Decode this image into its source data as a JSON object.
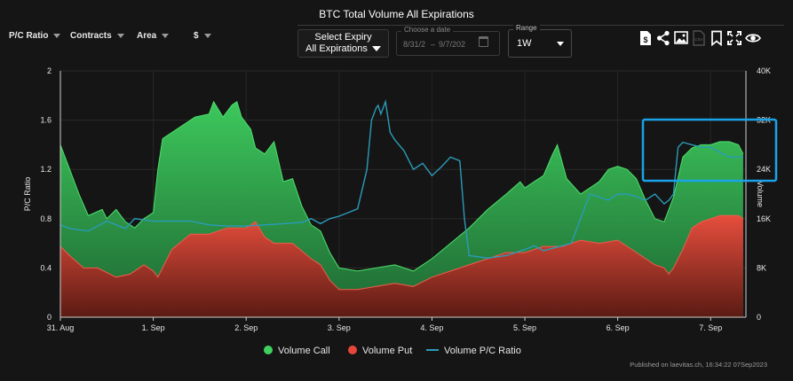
{
  "header": {
    "title": "BTC Total Volume All Expirations"
  },
  "toolbar": {
    "dropdowns": [
      "P/C Ratio",
      "Contracts",
      "Area",
      "$"
    ],
    "expiry_label": "Select Expiry",
    "expiry_value": "All Expirations",
    "date_legend": "Choose a date",
    "date_from": "8/31/2",
    "date_sep": "–",
    "date_to": "9/7/202",
    "range_legend": "Range",
    "range_value": "1W"
  },
  "icons": [
    "dollar-file-icon",
    "share-icon",
    "image-icon",
    "csv-icon",
    "bookmark-icon",
    "fullscreen-icon",
    "eye-icon"
  ],
  "published": "Published on laevitas.ch, 16:34:22 07Sep2023",
  "colors": {
    "call": "#3fd160",
    "put": "#e8463a",
    "ratio": "#2b9bb8",
    "highlight": "#1aa3e8"
  },
  "chart_data": {
    "type": "area",
    "title": "BTC Total Volume All Expirations",
    "x_ticks": [
      "31. Aug",
      "1. Sep",
      "2. Sep",
      "3. Sep",
      "4. Sep",
      "5. Sep",
      "6. Sep",
      "7. Sep"
    ],
    "x_range": [
      0,
      7.38
    ],
    "y_left": {
      "label": "P/C Ratio",
      "ticks": [
        "0",
        "0.4",
        "0.8",
        "1.2",
        "1.6",
        "2"
      ],
      "range": [
        0,
        2
      ]
    },
    "y_right": {
      "label": "Volume",
      "ticks": [
        "0",
        "8K",
        "16K",
        "24K",
        "32K",
        "40K"
      ],
      "range": [
        0,
        40000
      ]
    },
    "grid": true,
    "legend_position": "bottom",
    "series": [
      {
        "name": "Volume Call",
        "axis": "right",
        "x": [
          0,
          0.1,
          0.2,
          0.3,
          0.45,
          0.5,
          0.6,
          0.7,
          0.8,
          0.9,
          1.0,
          1.05,
          1.1,
          1.2,
          1.3,
          1.45,
          1.6,
          1.65,
          1.75,
          1.85,
          1.9,
          1.95,
          2.05,
          2.1,
          2.2,
          2.3,
          2.4,
          2.5,
          2.6,
          2.7,
          2.8,
          2.9,
          3.0,
          3.2,
          3.4,
          3.6,
          3.8,
          4.0,
          4.2,
          4.4,
          4.6,
          4.8,
          4.95,
          5.0,
          5.1,
          5.2,
          5.3,
          5.35,
          5.45,
          5.6,
          5.8,
          5.9,
          6.0,
          6.1,
          6.2,
          6.3,
          6.35,
          6.4,
          6.5,
          6.6,
          6.7,
          6.8,
          6.9,
          7.0,
          7.1,
          7.2,
          7.3,
          7.35
        ],
        "values": [
          28000,
          24000,
          20000,
          16500,
          17500,
          16000,
          17500,
          15500,
          14500,
          16000,
          17000,
          24000,
          29000,
          30000,
          31000,
          32500,
          33000,
          35000,
          32500,
          34500,
          35000,
          32500,
          30500,
          27500,
          26500,
          28500,
          22000,
          22500,
          18000,
          15000,
          14000,
          10500,
          8000,
          7500,
          8000,
          8500,
          7500,
          9500,
          12000,
          14500,
          17500,
          20000,
          22000,
          21000,
          22000,
          23000,
          26500,
          28000,
          22500,
          20000,
          22000,
          24000,
          24500,
          24000,
          22500,
          19000,
          17500,
          16000,
          15500,
          19500,
          26000,
          27500,
          28000,
          28000,
          28500,
          28500,
          28000,
          26500
        ]
      },
      {
        "name": "Volume Put",
        "axis": "right",
        "x": [
          0,
          0.1,
          0.25,
          0.4,
          0.6,
          0.75,
          0.9,
          1.0,
          1.05,
          1.2,
          1.4,
          1.6,
          1.8,
          2.0,
          2.1,
          2.2,
          2.3,
          2.5,
          2.7,
          2.8,
          2.9,
          3.0,
          3.2,
          3.4,
          3.6,
          3.8,
          4.0,
          4.2,
          4.4,
          4.6,
          4.8,
          5.0,
          5.2,
          5.4,
          5.6,
          5.8,
          6.0,
          6.2,
          6.4,
          6.5,
          6.55,
          6.6,
          6.7,
          6.8,
          6.9,
          7.0,
          7.1,
          7.2,
          7.3,
          7.35
        ],
        "values": [
          11500,
          10000,
          8000,
          8000,
          6500,
          7000,
          8500,
          7500,
          6500,
          11000,
          13500,
          13500,
          14500,
          14500,
          15500,
          13000,
          12000,
          12000,
          9500,
          8500,
          6000,
          4500,
          4500,
          5000,
          5500,
          5000,
          6500,
          7500,
          8500,
          9500,
          10500,
          10500,
          11500,
          11500,
          12500,
          12000,
          12500,
          10500,
          8500,
          8000,
          7000,
          8000,
          11000,
          14500,
          15500,
          16000,
          16500,
          16500,
          16500,
          16000
        ]
      },
      {
        "name": "Volume P/C Ratio",
        "axis": "left",
        "x": [
          0,
          0.1,
          0.3,
          0.5,
          0.7,
          0.8,
          1.0,
          1.2,
          1.4,
          1.6,
          1.8,
          2.0,
          2.2,
          2.4,
          2.6,
          2.7,
          2.8,
          2.9,
          3.0,
          3.1,
          3.2,
          3.3,
          3.35,
          3.4,
          3.42,
          3.45,
          3.5,
          3.55,
          3.6,
          3.7,
          3.8,
          3.9,
          4.0,
          4.1,
          4.2,
          4.3,
          4.35,
          4.4,
          4.6,
          4.8,
          5.0,
          5.1,
          5.2,
          5.3,
          5.5,
          5.7,
          5.9,
          6.0,
          6.1,
          6.2,
          6.3,
          6.4,
          6.5,
          6.55,
          6.6,
          6.65,
          6.7,
          6.8,
          6.9,
          7.0,
          7.2,
          7.35
        ],
        "values": [
          0.75,
          0.72,
          0.7,
          0.78,
          0.72,
          0.8,
          0.78,
          0.78,
          0.78,
          0.75,
          0.74,
          0.74,
          0.75,
          0.76,
          0.77,
          0.8,
          0.76,
          0.8,
          0.82,
          0.85,
          0.88,
          1.2,
          1.6,
          1.7,
          1.72,
          1.65,
          1.75,
          1.5,
          1.44,
          1.35,
          1.2,
          1.25,
          1.15,
          1.22,
          1.3,
          1.27,
          0.8,
          0.5,
          0.48,
          0.5,
          0.55,
          0.58,
          0.54,
          0.56,
          0.6,
          1.0,
          0.95,
          1.0,
          1.0,
          0.98,
          0.95,
          1.0,
          0.92,
          0.95,
          1.0,
          1.38,
          1.42,
          1.4,
          1.38,
          1.38,
          1.3,
          1.3
        ]
      }
    ]
  }
}
